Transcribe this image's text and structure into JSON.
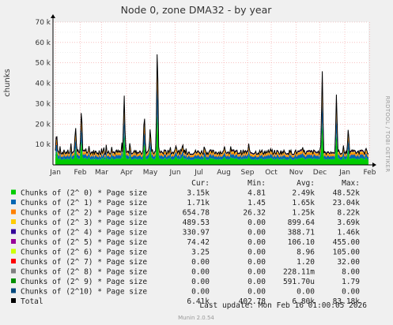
{
  "chart_data": {
    "type": "area",
    "title": "Node 0, zone DMA32 - by year",
    "ylabel": "chunks",
    "side_label": "RRDTOOL / TOBI OETIKER",
    "ylim": [
      0,
      70000
    ],
    "y_ticks": [
      {
        "v": 10000,
        "label": "10 k"
      },
      {
        "v": 20000,
        "label": "20 k"
      },
      {
        "v": 30000,
        "label": "30 k"
      },
      {
        "v": 40000,
        "label": "40 k"
      },
      {
        "v": 50000,
        "label": "50 k"
      },
      {
        "v": 60000,
        "label": "60 k"
      },
      {
        "v": 70000,
        "label": "70 k"
      }
    ],
    "x_ticks": [
      "Jan",
      "Feb",
      "Mar",
      "Apr",
      "May",
      "Jun",
      "Jul",
      "Aug",
      "Sep",
      "Oct",
      "Nov",
      "Dec",
      "Jan",
      "Feb"
    ],
    "x_tick_positions": [
      0,
      1.05,
      1.95,
      3.0,
      4.0,
      5.05,
      6.05,
      7.1,
      8.1,
      9.1,
      10.15,
      11.15,
      12.2,
      13.25
    ],
    "grid": true,
    "total_peaks": [
      {
        "x": 0.05,
        "y": 17000
      },
      {
        "x": 0.85,
        "y": 20000
      },
      {
        "x": 1.1,
        "y": 30000
      },
      {
        "x": 2.9,
        "y": 36000
      },
      {
        "x": 3.75,
        "y": 27000
      },
      {
        "x": 4.0,
        "y": 19000
      },
      {
        "x": 4.3,
        "y": 64000
      },
      {
        "x": 5.1,
        "y": 9000
      },
      {
        "x": 11.25,
        "y": 48000
      },
      {
        "x": 11.85,
        "y": 36000
      },
      {
        "x": 12.35,
        "y": 19000
      }
    ],
    "total_base": 5000,
    "legend_header": {
      "cur": "Cur:",
      "min": "Min:",
      "avg": "Avg:",
      "max": "Max:"
    },
    "series": [
      {
        "name": "Chunks of (2^ 0) * Page size",
        "color": "#00cc00",
        "cur": "3.15k",
        "min": "4.81",
        "avg": "2.49k",
        "max": "48.52k"
      },
      {
        "name": "Chunks of (2^ 1) * Page size",
        "color": "#0066b3",
        "cur": "1.71k",
        "min": "1.45",
        "avg": "1.65k",
        "max": "23.04k"
      },
      {
        "name": "Chunks of (2^ 2) * Page size",
        "color": "#ff8000",
        "cur": "654.78",
        "min": "26.32",
        "avg": "1.25k",
        "max": "8.22k"
      },
      {
        "name": "Chunks of (2^ 3) * Page size",
        "color": "#ffcc00",
        "cur": "489.53",
        "min": "0.00",
        "avg": "899.64",
        "max": "3.69k"
      },
      {
        "name": "Chunks of (2^ 4) * Page size",
        "color": "#330099",
        "cur": "330.97",
        "min": "0.00",
        "avg": "388.71",
        "max": "1.46k"
      },
      {
        "name": "Chunks of (2^ 5) * Page size",
        "color": "#990099",
        "cur": "74.42",
        "min": "0.00",
        "avg": "106.10",
        "max": "455.00"
      },
      {
        "name": "Chunks of (2^ 6) * Page size",
        "color": "#ccff00",
        "cur": "3.25",
        "min": "0.00",
        "avg": "8.96",
        "max": "105.00"
      },
      {
        "name": "Chunks of (2^ 7) * Page size",
        "color": "#ff0000",
        "cur": "0.00",
        "min": "0.00",
        "avg": "1.20",
        "max": "32.00"
      },
      {
        "name": "Chunks of (2^ 8) * Page size",
        "color": "#808080",
        "cur": "0.00",
        "min": "0.00",
        "avg": "228.11m",
        "max": "8.00"
      },
      {
        "name": "Chunks of (2^ 9) * Page size",
        "color": "#008f00",
        "cur": "0.00",
        "min": "0.00",
        "avg": "591.70u",
        "max": "1.79"
      },
      {
        "name": "Chunks of (2^10) * Page size",
        "color": "#00487d",
        "cur": "0.00",
        "min": "0.00",
        "avg": "0.00",
        "max": "0.00"
      },
      {
        "name": "Total",
        "color": "#000000",
        "cur": "6.41k",
        "min": "402.78",
        "avg": "6.80k",
        "max": "83.18k"
      }
    ],
    "last_update": "Last update: Mon Feb 16 01:00:05 2026",
    "footer": "Munin 2.0.54"
  }
}
